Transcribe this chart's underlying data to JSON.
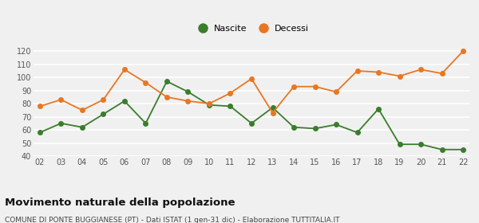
{
  "years": [
    "02",
    "03",
    "04",
    "05",
    "06",
    "07",
    "08",
    "09",
    "10",
    "11",
    "12",
    "13",
    "14",
    "15",
    "16",
    "17",
    "18",
    "19",
    "20",
    "21",
    "22"
  ],
  "nascite": [
    58,
    65,
    62,
    72,
    82,
    65,
    97,
    89,
    79,
    78,
    65,
    77,
    62,
    61,
    64,
    58,
    76,
    49,
    49,
    45,
    45
  ],
  "decessi": [
    78,
    83,
    75,
    83,
    106,
    96,
    85,
    82,
    80,
    88,
    99,
    73,
    93,
    93,
    89,
    105,
    104,
    101,
    106,
    103,
    120
  ],
  "nascite_color": "#3a7d2c",
  "decessi_color": "#e87722",
  "background_color": "#f0f0f0",
  "ylim": [
    40,
    125
  ],
  "yticks": [
    40,
    50,
    60,
    70,
    80,
    90,
    100,
    110,
    120
  ],
  "title": "Movimento naturale della popolazione",
  "subtitle": "COMUNE DI PONTE BUGGIANESE (PT) - Dati ISTAT (1 gen-31 dic) - Elaborazione TUTTITALIA.IT",
  "legend_nascite": "Nascite",
  "legend_decessi": "Decessi",
  "title_fontsize": 9.5,
  "subtitle_fontsize": 6.5,
  "axis_fontsize": 7,
  "legend_fontsize": 8,
  "marker_size": 4,
  "line_width": 1.3
}
